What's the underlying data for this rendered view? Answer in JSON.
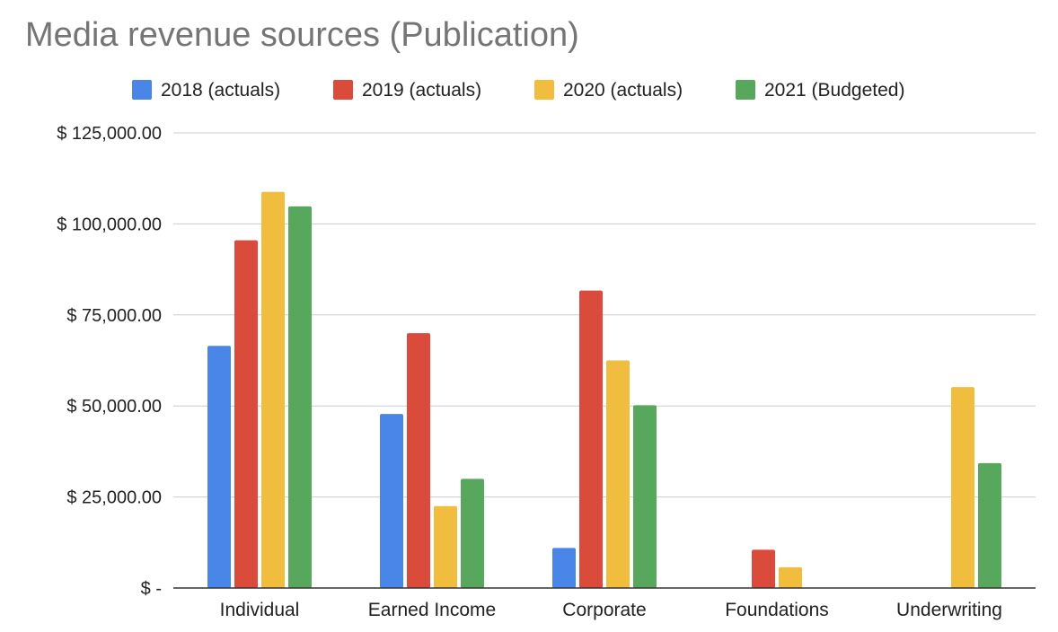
{
  "chart_data": {
    "type": "bar",
    "title": "Media revenue sources (Publication)",
    "xlabel": "",
    "ylabel": "",
    "categories": [
      "Individual",
      "Earned Income",
      "Corporate",
      "Foundations",
      "Underwriting"
    ],
    "series": [
      {
        "name": "2018 (actuals)",
        "color": "#4a86e8",
        "values": [
          66500,
          47800,
          11000,
          0,
          0
        ]
      },
      {
        "name": "2019 (actuals)",
        "color": "#db4b3c",
        "values": [
          95500,
          70000,
          81700,
          10500,
          0
        ]
      },
      {
        "name": "2020 (actuals)",
        "color": "#f1bd3e",
        "values": [
          108800,
          22500,
          62500,
          5700,
          55200
        ]
      },
      {
        "name": "2021 (Budgeted)",
        "color": "#57a85d",
        "values": [
          104800,
          30000,
          50200,
          0,
          34300
        ]
      }
    ],
    "ylim": [
      0,
      125000
    ],
    "y_ticks": [
      {
        "value": 0,
        "label": "$ -"
      },
      {
        "value": 25000,
        "label": "$ 25,000.00"
      },
      {
        "value": 50000,
        "label": "$ 50,000.00"
      },
      {
        "value": 75000,
        "label": "$ 75,000.00"
      },
      {
        "value": 100000,
        "label": "$ 100,000.00"
      },
      {
        "value": 125000,
        "label": "$ 125,000.00"
      }
    ],
    "grid": true,
    "legend_position": "top"
  }
}
